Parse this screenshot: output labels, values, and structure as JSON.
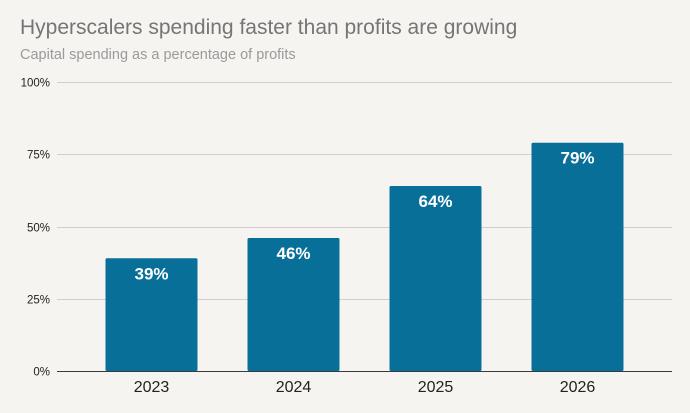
{
  "title": "Hyperscalers spending faster than profits are growing",
  "subtitle": "Capital spending as a percentage of profits",
  "colors": {
    "background": "#f6f4f0",
    "bar": "#086f98",
    "gridline": "#cfcfcf",
    "title": "#757575",
    "subtitle": "#9a9a9a",
    "label": "#ffffff"
  },
  "chart_data": {
    "type": "bar",
    "title": "Hyperscalers spending faster than profits are growing",
    "subtitle": "Capital spending as a percentage of profits",
    "categories": [
      "2023",
      "2024",
      "2025",
      "2026"
    ],
    "values": [
      39,
      46,
      64,
      79
    ],
    "data_labels": [
      "39%",
      "46%",
      "64%",
      "79%"
    ],
    "xlabel": "",
    "ylabel": "",
    "ylim": [
      0,
      100
    ],
    "yticks": [
      0,
      25,
      50,
      75,
      100
    ],
    "ytick_labels": [
      "0%",
      "25%",
      "50%",
      "75%",
      "100%"
    ],
    "grid": true,
    "legend": false
  }
}
